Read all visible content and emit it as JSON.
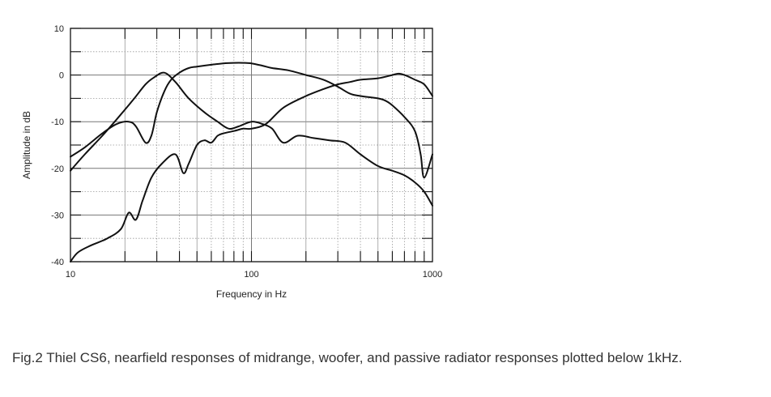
{
  "chart_data": {
    "type": "line",
    "title": "",
    "xlabel": "Frequency in Hz",
    "ylabel": "Amplitude in dB",
    "xscale": "log",
    "xlim": [
      10,
      1000
    ],
    "ylim": [
      -40,
      10
    ],
    "x_ticks": [
      "10",
      "100",
      "1000"
    ],
    "y_ticks": [
      "10",
      "0",
      "-10",
      "-20",
      "-30",
      "-40"
    ],
    "grid": true,
    "legend": "none",
    "series": [
      {
        "x": [
          10,
          12,
          15,
          18,
          22,
          26,
          29,
          33,
          38,
          45,
          55,
          65,
          75,
          85,
          100,
          115,
          130,
          150,
          180,
          220,
          270,
          330,
          400,
          500,
          600,
          700,
          800,
          900,
          1000
        ],
        "y": [
          -20.5,
          -17,
          -13,
          -9.5,
          -5.5,
          -2,
          -0.5,
          0.5,
          -1.5,
          -5,
          -8,
          -10,
          -11.5,
          -11,
          -10,
          -10.5,
          -11.5,
          -14.5,
          -13,
          -13.5,
          -14,
          -14.5,
          -17,
          -19.5,
          -20.5,
          -21.5,
          -23,
          -25,
          -28
        ]
      },
      {
        "x": [
          10,
          12,
          15,
          18,
          21,
          23,
          26,
          28,
          30,
          33,
          36,
          40,
          45,
          50,
          60,
          70,
          80,
          90,
          100,
          115,
          130,
          160,
          200,
          250,
          300,
          350,
          400,
          500,
          550,
          600,
          700,
          800,
          860,
          900,
          1000
        ],
        "y": [
          -17.5,
          -15.5,
          -12.5,
          -10.5,
          -10,
          -11,
          -14.5,
          -13,
          -8,
          -3.5,
          -1,
          0.5,
          1.5,
          1.8,
          2.2,
          2.5,
          2.6,
          2.6,
          2.5,
          2,
          1.5,
          1,
          0,
          -1,
          -2.5,
          -4,
          -4.5,
          -5,
          -5.5,
          -6.5,
          -9,
          -12,
          -17,
          -22,
          -17
        ]
      },
      {
        "x": [
          10,
          11,
          13,
          16,
          19,
          21,
          23,
          25,
          28,
          32,
          38,
          42,
          45,
          50,
          55,
          60,
          65,
          70,
          80,
          90,
          100,
          120,
          150,
          200,
          250,
          300,
          350,
          400,
          500,
          600,
          650,
          700,
          800,
          900,
          1000
        ],
        "y": [
          -40,
          -38,
          -36.5,
          -35,
          -33,
          -29.5,
          -31,
          -27,
          -22,
          -19,
          -17,
          -21,
          -19,
          -15,
          -14,
          -14.5,
          -13,
          -12.5,
          -12,
          -11.5,
          -11.5,
          -10.5,
          -7,
          -4.5,
          -3,
          -2,
          -1.5,
          -1,
          -0.7,
          0,
          0.3,
          0,
          -1,
          -2,
          -4.5
        ]
      }
    ]
  },
  "caption": "Fig.2 Thiel CS6, nearfield responses of midrange, woofer, and passive radiator responses plotted below 1kHz."
}
